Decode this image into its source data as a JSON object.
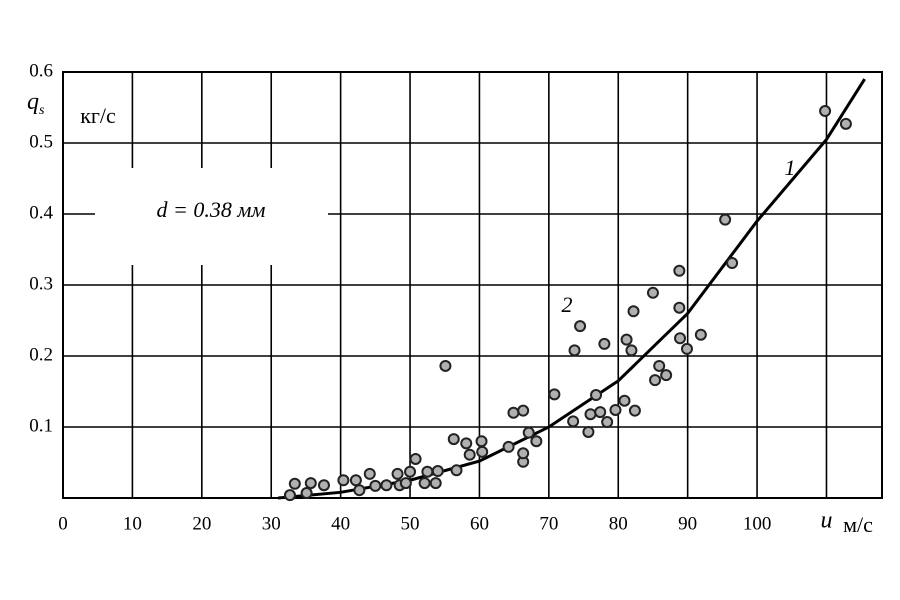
{
  "chart_data": {
    "type": "scatter",
    "y_label": {
      "symbol": "q",
      "subscript": "s",
      "unit": "кг/с"
    },
    "x_unit": "м/с",
    "annotation": "d = 0.38 мм",
    "xlim": [
      0,
      118
    ],
    "ylim": [
      0,
      0.6
    ],
    "xticks": [
      0,
      10,
      20,
      30,
      40,
      50,
      60,
      70,
      80,
      90,
      100,
      {
        "value": 110,
        "label": "u"
      }
    ],
    "yticks": [
      0.1,
      0.2,
      0.3,
      0.4,
      0.5,
      0.6
    ],
    "grid": true,
    "series": [
      {
        "name": "1",
        "type": "line",
        "color": "#000000",
        "x": [
          31,
          40,
          50,
          60,
          70,
          80,
          90,
          100,
          110,
          115.5
        ],
        "values": [
          0,
          0.008,
          0.025,
          0.052,
          0.1,
          0.165,
          0.26,
          0.39,
          0.505,
          0.59
        ]
      },
      {
        "name": "2",
        "type": "scatter",
        "color": "#b0b0b0",
        "x": [
          32.7,
          33.4,
          35.1,
          35.7,
          37.6,
          40.4,
          42.2,
          42.7,
          44.2,
          45.0,
          46.6,
          48.2,
          48.5,
          49.4,
          50.0,
          50.8,
          52.1,
          52.5,
          53.7,
          54.0,
          55.1,
          56.3,
          56.7,
          58.1,
          58.6,
          60.3,
          60.4,
          64.2,
          64.9,
          66.3,
          66.3,
          66.3,
          67.1,
          68.2,
          70.8,
          73.5,
          73.7,
          74.5,
          75.7,
          76.0,
          76.8,
          77.4,
          78.0,
          78.4,
          79.6,
          80.9,
          81.2,
          81.9,
          82.2,
          82.4,
          85.0,
          85.3,
          85.9,
          86.9,
          88.8,
          88.8,
          88.9,
          89.9,
          91.9,
          95.4,
          96.4,
          109.8,
          112.8
        ],
        "values": [
          0.004,
          0.02,
          0.007,
          0.021,
          0.018,
          0.025,
          0.025,
          0.011,
          0.034,
          0.017,
          0.018,
          0.034,
          0.018,
          0.021,
          0.037,
          0.055,
          0.021,
          0.037,
          0.021,
          0.038,
          0.186,
          0.083,
          0.039,
          0.077,
          0.061,
          0.08,
          0.065,
          0.072,
          0.12,
          0.123,
          0.051,
          0.063,
          0.092,
          0.08,
          0.146,
          0.108,
          0.208,
          0.242,
          0.093,
          0.118,
          0.145,
          0.121,
          0.217,
          0.107,
          0.124,
          0.137,
          0.223,
          0.208,
          0.263,
          0.123,
          0.289,
          0.166,
          0.186,
          0.173,
          0.32,
          0.268,
          0.225,
          0.21,
          0.23,
          0.392,
          0.331,
          0.545,
          0.527
        ]
      }
    ]
  }
}
